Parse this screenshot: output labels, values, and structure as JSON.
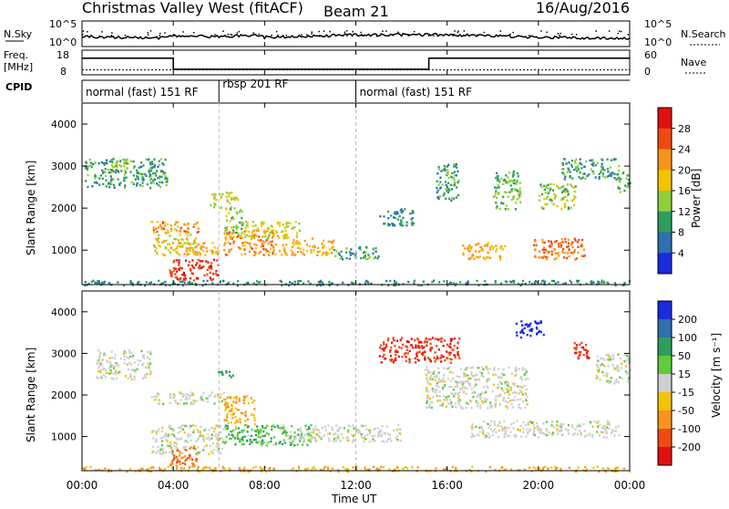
{
  "header": {
    "title": "Christmas Valley West (fitACF)",
    "beam": "Beam 21",
    "date": "16/Aug/2016"
  },
  "noise_panel": {
    "left_label": "N.Sky",
    "right_label": "N.Search",
    "left_ticks": [
      "10^5",
      "10^0"
    ],
    "right_ticks": [
      "10^5",
      "10^0"
    ]
  },
  "freq_panel": {
    "left_label_1": "Freq.",
    "left_label_2": "[MHz]",
    "right_label": "Nave",
    "left_ticks": [
      "18",
      "8"
    ],
    "right_ticks": [
      "60",
      "0"
    ]
  },
  "cpid": {
    "label": "CPID",
    "segments": [
      {
        "name": "normal (fast) 151 RF",
        "start_hour": 0,
        "end_hour": 6
      },
      {
        "name": "rbsp 201 RF",
        "start_hour": 6,
        "end_hour": 12
      },
      {
        "name": "normal (fast) 151 RF",
        "start_hour": 12,
        "end_hour": 24
      }
    ]
  },
  "power_panel": {
    "ylabel": "Slant Range [km]",
    "colorbar_label": "Power [dB]",
    "colorbar_ticks": [
      "28",
      "24",
      "20",
      "16",
      "12",
      "8",
      "4"
    ],
    "colorbar_colors": [
      "#e01010",
      "#f04a10",
      "#f7941d",
      "#f2c300",
      "#8fcf3c",
      "#2e9e5b",
      "#2f6fb0",
      "#1a2be0"
    ]
  },
  "velocity_panel": {
    "ylabel": "Slant Range [km]",
    "colorbar_label": "Velocity [m s⁻¹]",
    "colorbar_ticks": [
      "200",
      "100",
      "50",
      "15",
      "-15",
      "-50",
      "-100",
      "-200"
    ],
    "colorbar_colors": [
      "#1a2be0",
      "#2f6fb0",
      "#2e9e5b",
      "#5fcc3a",
      "#cfcfcf",
      "#f2c300",
      "#f7941d",
      "#f04a10",
      "#e01010"
    ]
  },
  "x_axis": {
    "label": "Time UT",
    "ticks": [
      "00:00",
      "04:00",
      "08:00",
      "12:00",
      "16:00",
      "20:00",
      "00:00"
    ]
  },
  "chart_data": {
    "type": "heatmap",
    "title": "Christmas Valley West (fitACF)",
    "subtitle": "Beam 21 16/Aug/2016",
    "xlabel": "Time UT",
    "ylabel": "Slant Range [km]",
    "x_range_hours": [
      0,
      24
    ],
    "y_range_km": [
      180,
      4500
    ],
    "y_ticks": [
      1000,
      2000,
      3000,
      4000
    ],
    "frequency_mhz": [
      {
        "start_hour": 0,
        "end_hour": 4,
        "value": 15.5
      },
      {
        "start_hour": 4,
        "end_hour": 15.2,
        "value": 10.5
      },
      {
        "start_hour": 15.2,
        "end_hour": 24,
        "value": 15.5
      }
    ],
    "nave_level": 12,
    "power_db": [
      {
        "t0": 0.1,
        "t1": 3.7,
        "r0": 2500,
        "r1": 3200,
        "value": 10
      },
      {
        "t0": 1.2,
        "t1": 2.0,
        "r0": 2900,
        "r1": 3200,
        "value": 14
      },
      {
        "t0": 3.0,
        "t1": 5.2,
        "r0": 1400,
        "r1": 1700,
        "value": 22
      },
      {
        "t0": 3.1,
        "t1": 5.0,
        "r0": 900,
        "r1": 1400,
        "value": 18
      },
      {
        "t0": 3.8,
        "t1": 6.0,
        "r0": 300,
        "r1": 800,
        "value": 28
      },
      {
        "t0": 4.5,
        "t1": 6.2,
        "r0": 900,
        "r1": 1200,
        "value": 20
      },
      {
        "t0": 5.6,
        "t1": 6.8,
        "r0": 2000,
        "r1": 2400,
        "value": 16
      },
      {
        "t0": 6.2,
        "t1": 7.0,
        "r0": 1400,
        "r1": 2000,
        "value": 14
      },
      {
        "t0": 6.2,
        "t1": 8.6,
        "r0": 900,
        "r1": 1500,
        "value": 22
      },
      {
        "t0": 7.0,
        "t1": 9.5,
        "r0": 1300,
        "r1": 1700,
        "value": 16
      },
      {
        "t0": 8.6,
        "t1": 11.0,
        "r0": 900,
        "r1": 1300,
        "value": 20
      },
      {
        "t0": 11.0,
        "t1": 13.0,
        "r0": 800,
        "r1": 1100,
        "value": 10
      },
      {
        "t0": 13.0,
        "t1": 14.5,
        "r0": 1600,
        "r1": 2000,
        "value": 8
      },
      {
        "t0": 15.5,
        "t1": 16.5,
        "r0": 2200,
        "r1": 3100,
        "value": 10
      },
      {
        "t0": 16.6,
        "t1": 18.5,
        "r0": 800,
        "r1": 1200,
        "value": 20
      },
      {
        "t0": 18.0,
        "t1": 19.2,
        "r0": 2000,
        "r1": 2900,
        "value": 12
      },
      {
        "t0": 19.7,
        "t1": 22.0,
        "r0": 800,
        "r1": 1300,
        "value": 24
      },
      {
        "t0": 20.0,
        "t1": 21.6,
        "r0": 2000,
        "r1": 2600,
        "value": 14
      },
      {
        "t0": 21.0,
        "t1": 23.5,
        "r0": 2700,
        "r1": 3200,
        "value": 10
      },
      {
        "t0": 23.4,
        "t1": 24.0,
        "r0": 2400,
        "r1": 2900,
        "value": 12
      },
      {
        "t0": 0.0,
        "t1": 24.0,
        "r0": 180,
        "r1": 300,
        "value": 8
      }
    ],
    "velocity_ms": [
      {
        "t0": 0.6,
        "t1": 3.0,
        "r0": 2400,
        "r1": 3100,
        "value": 0
      },
      {
        "t0": 3.0,
        "t1": 6.2,
        "r0": 1800,
        "r1": 2100,
        "value": 0
      },
      {
        "t0": 3.0,
        "t1": 6.2,
        "r0": 600,
        "r1": 1300,
        "value": 0
      },
      {
        "t0": 3.8,
        "t1": 5.0,
        "r0": 300,
        "r1": 800,
        "value": -100
      },
      {
        "t0": 5.9,
        "t1": 6.6,
        "r0": 2400,
        "r1": 2600,
        "value": 50
      },
      {
        "t0": 6.2,
        "t1": 7.6,
        "r0": 1300,
        "r1": 2000,
        "value": -50
      },
      {
        "t0": 6.2,
        "t1": 10.0,
        "r0": 800,
        "r1": 1300,
        "value": 30
      },
      {
        "t0": 9.0,
        "t1": 14.0,
        "r0": 900,
        "r1": 1300,
        "value": 0
      },
      {
        "t0": 13.0,
        "t1": 16.5,
        "r0": 2800,
        "r1": 3400,
        "value": -200
      },
      {
        "t0": 15.0,
        "t1": 19.5,
        "r0": 1700,
        "r1": 2700,
        "value": 0
      },
      {
        "t0": 17.0,
        "t1": 23.5,
        "r0": 1000,
        "r1": 1400,
        "value": 0
      },
      {
        "t0": 19.0,
        "t1": 20.2,
        "r0": 3400,
        "r1": 3800,
        "value": 200
      },
      {
        "t0": 21.5,
        "t1": 22.4,
        "r0": 2900,
        "r1": 3300,
        "value": -200
      },
      {
        "t0": 22.5,
        "t1": 24.0,
        "r0": 2300,
        "r1": 3000,
        "value": 0
      },
      {
        "t0": 0.0,
        "t1": 24.0,
        "r0": 180,
        "r1": 300,
        "value": -50
      }
    ]
  }
}
